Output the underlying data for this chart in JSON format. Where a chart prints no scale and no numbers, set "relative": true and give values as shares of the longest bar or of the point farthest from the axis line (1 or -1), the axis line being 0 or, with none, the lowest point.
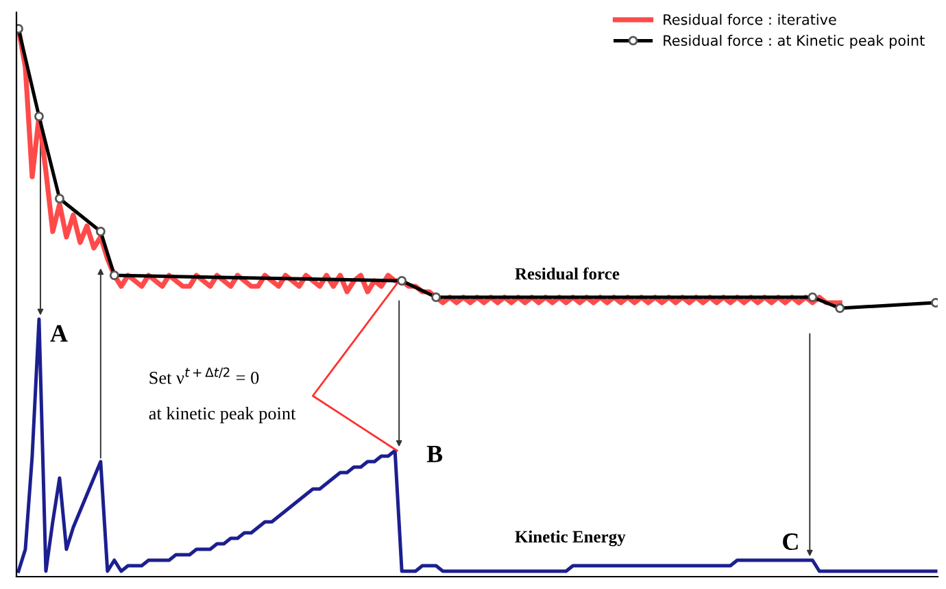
{
  "chart_data": {
    "type": "line",
    "relative": true,
    "legend": "top right",
    "grid": false,
    "categories": [
      null,
      null,
      null,
      null,
      null,
      null,
      null,
      null,
      null,
      null,
      null,
      null,
      null,
      null,
      null,
      null,
      null,
      null,
      null,
      null,
      null,
      null,
      null,
      null,
      null,
      null,
      null,
      null,
      null,
      null,
      null,
      null,
      null,
      null,
      null,
      null,
      null,
      null,
      null,
      null,
      null,
      null,
      null,
      null,
      null,
      null,
      null,
      null,
      null,
      null,
      null,
      null,
      null,
      null,
      null,
      null,
      null,
      null,
      null,
      null,
      null,
      null,
      null,
      null,
      null,
      null,
      null,
      null,
      null,
      null,
      null,
      null,
      null,
      null,
      null,
      null,
      null,
      null,
      null,
      null,
      null,
      null,
      null,
      null,
      null,
      null,
      null,
      null,
      null,
      null,
      null,
      null,
      null,
      null,
      null,
      null,
      null,
      null,
      null,
      null,
      null,
      null,
      null,
      null,
      null,
      null,
      null,
      null,
      null,
      null,
      null,
      null,
      null,
      null,
      null,
      null,
      null,
      null,
      null,
      null,
      null,
      null,
      null,
      null,
      null,
      null,
      null,
      null,
      null,
      null,
      null,
      null,
      null,
      null,
      null
    ],
    "series": [
      {
        "name": "Residual force : iterative",
        "color": "#ff4a4a",
        "marker": "none",
        "values": [
          1.0,
          0.93,
          0.73,
          0.84,
          0.74,
          0.63,
          0.68,
          0.62,
          0.66,
          0.61,
          0.64,
          0.6,
          0.62,
          0.58,
          0.55,
          0.53,
          0.55,
          0.54,
          0.53,
          0.55,
          0.54,
          0.53,
          0.55,
          0.54,
          0.53,
          0.53,
          0.55,
          0.54,
          0.53,
          0.55,
          0.54,
          0.53,
          0.55,
          0.54,
          0.53,
          0.53,
          0.55,
          0.54,
          0.53,
          0.55,
          0.54,
          0.53,
          0.55,
          0.54,
          0.53,
          0.55,
          0.53,
          0.55,
          0.52,
          0.54,
          0.55,
          0.52,
          0.54,
          0.53,
          0.55,
          0.54,
          0.54,
          0.53,
          0.53,
          0.52,
          0.52,
          0.51,
          0.5,
          0.51,
          0.5,
          0.51,
          0.5,
          0.51,
          0.5,
          0.51,
          0.5,
          0.51,
          0.5,
          0.51,
          0.5,
          0.51,
          0.5,
          0.51,
          0.5,
          0.51,
          0.5,
          0.51,
          0.5,
          0.51,
          0.5,
          0.51,
          0.5,
          0.51,
          0.5,
          0.51,
          0.5,
          0.51,
          0.5,
          0.51,
          0.5,
          0.51,
          0.5,
          0.51,
          0.5,
          0.51,
          0.5,
          0.51,
          0.5,
          0.51,
          0.5,
          0.51,
          0.5,
          0.51,
          0.5,
          0.51,
          0.5,
          0.51,
          0.5,
          0.51,
          0.5,
          0.51,
          0.5,
          0.51,
          0.5,
          0.5,
          0.5,
          null,
          null,
          null,
          null,
          null,
          null,
          null,
          null,
          null,
          null,
          null,
          null,
          null,
          null
        ]
      },
      {
        "name": "Residual force : at Kinetic peak point",
        "color": "#000000",
        "marker": "circle",
        "values": [
          1.0,
          null,
          null,
          0.84,
          null,
          null,
          0.69,
          null,
          null,
          null,
          null,
          null,
          0.63,
          null,
          0.55,
          null,
          null,
          null,
          null,
          null,
          null,
          null,
          null,
          null,
          null,
          null,
          null,
          null,
          null,
          null,
          null,
          null,
          null,
          null,
          null,
          null,
          null,
          null,
          null,
          null,
          null,
          null,
          null,
          null,
          null,
          null,
          null,
          null,
          null,
          null,
          null,
          null,
          null,
          null,
          null,
          null,
          0.54,
          null,
          null,
          null,
          null,
          0.51,
          null,
          null,
          null,
          null,
          null,
          null,
          null,
          null,
          null,
          null,
          null,
          null,
          null,
          null,
          null,
          null,
          null,
          null,
          null,
          null,
          null,
          null,
          null,
          null,
          null,
          null,
          null,
          null,
          null,
          null,
          null,
          null,
          null,
          null,
          null,
          null,
          null,
          null,
          null,
          null,
          null,
          null,
          null,
          null,
          null,
          null,
          null,
          null,
          null,
          null,
          null,
          null,
          null,
          null,
          0.51,
          null,
          null,
          null,
          0.49,
          null,
          null,
          null,
          null,
          null,
          null,
          null,
          null,
          null,
          null,
          null,
          null,
          null,
          0.5
        ]
      },
      {
        "color": "#1c1f8f",
        "marker": "none",
        "values": [
          0.01,
          0.05,
          0.22,
          0.47,
          0.01,
          0.1,
          0.18,
          0.05,
          0.09,
          0.12,
          0.15,
          0.18,
          0.21,
          0.01,
          0.03,
          0.01,
          0.02,
          0.02,
          0.02,
          0.03,
          0.03,
          0.03,
          0.03,
          0.04,
          0.04,
          0.04,
          0.05,
          0.05,
          0.05,
          0.06,
          0.06,
          0.07,
          0.07,
          0.08,
          0.08,
          0.09,
          0.1,
          0.1,
          0.11,
          0.12,
          0.13,
          0.14,
          0.15,
          0.16,
          0.16,
          0.17,
          0.18,
          0.19,
          0.19,
          0.2,
          0.2,
          0.21,
          0.21,
          0.22,
          0.22,
          0.23,
          0.01,
          0.01,
          0.01,
          0.02,
          0.02,
          0.02,
          0.01,
          0.01,
          0.01,
          0.01,
          0.01,
          0.01,
          0.01,
          0.01,
          0.01,
          0.01,
          0.01,
          0.01,
          0.01,
          0.01,
          0.01,
          0.01,
          0.01,
          0.01,
          0.01,
          0.02,
          0.02,
          0.02,
          0.02,
          0.02,
          0.02,
          0.02,
          0.02,
          0.02,
          0.02,
          0.02,
          0.02,
          0.02,
          0.02,
          0.02,
          0.02,
          0.02,
          0.02,
          0.02,
          0.02,
          0.02,
          0.02,
          0.02,
          0.02,
          0.03,
          0.03,
          0.03,
          0.03,
          0.03,
          0.03,
          0.03,
          0.03,
          0.03,
          0.03,
          0.03,
          0.03,
          0.01,
          0.01,
          0.01,
          0.01,
          0.01,
          0.01,
          0.01,
          0.01,
          0.01,
          0.01,
          0.01,
          0.01,
          0.01,
          0.01,
          0.01,
          0.01,
          0.01,
          0.01
        ]
      }
    ],
    "annotations": [
      "A",
      "B",
      "C",
      "Residual force",
      "Kinetic Energy",
      "Set ν$^{t+Δt/2}$ = 0",
      "at kinetic peak point"
    ]
  }
}
